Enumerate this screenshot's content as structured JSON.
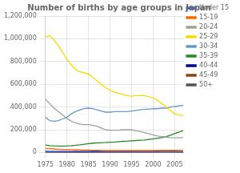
{
  "chart_data": {
    "type": "line",
    "title": "Number of births by age groups in Japan",
    "x": [
      1975,
      1976,
      1977,
      1978,
      1979,
      1980,
      1981,
      1982,
      1983,
      1984,
      1985,
      1986,
      1987,
      1988,
      1989,
      1990,
      1991,
      1992,
      1993,
      1994,
      1995,
      1996,
      1997,
      1998,
      1999,
      2000,
      2001,
      2002,
      2003,
      2004,
      2005,
      2006,
      2007
    ],
    "series": [
      {
        "name": "Under 15",
        "color": "#4169E1",
        "values": [
          5000,
          4500,
          4000,
          3500,
          3200,
          3000,
          2800,
          2600,
          2400,
          2200,
          2100,
          2000,
          1900,
          1800,
          1700,
          1600,
          1500,
          1400,
          1300,
          1200,
          1100,
          1100,
          1000,
          1000,
          900,
          900,
          800,
          800,
          700,
          700,
          600,
          600,
          600
        ]
      },
      {
        "name": "15-19",
        "color": "#FF6600",
        "values": [
          35000,
          33000,
          31000,
          29000,
          27000,
          26000,
          25000,
          24000,
          23000,
          22000,
          21000,
          20000,
          19000,
          18000,
          17000,
          17000,
          17000,
          17000,
          17000,
          17000,
          17000,
          17000,
          17000,
          17000,
          17000,
          17000,
          18000,
          18000,
          18000,
          18000,
          18000,
          19000,
          19000
        ]
      },
      {
        "name": "20-24",
        "color": "#A0A0A0",
        "values": [
          470000,
          430000,
          390000,
          360000,
          330000,
          300000,
          275000,
          260000,
          250000,
          245000,
          245000,
          240000,
          230000,
          215000,
          200000,
          195000,
          195000,
          195000,
          200000,
          200000,
          200000,
          190000,
          185000,
          175000,
          165000,
          155000,
          145000,
          140000,
          135000,
          130000,
          128000,
          130000,
          130000
        ]
      },
      {
        "name": "25-29",
        "color": "#FFD700",
        "values": [
          1010000,
          1030000,
          990000,
          940000,
          880000,
          820000,
          770000,
          730000,
          710000,
          700000,
          690000,
          660000,
          630000,
          600000,
          570000,
          550000,
          530000,
          520000,
          510000,
          500000,
          495000,
          500000,
          500000,
          500000,
          490000,
          480000,
          460000,
          430000,
          400000,
          370000,
          340000,
          330000,
          325000
        ]
      },
      {
        "name": "30-34",
        "color": "#6699CC",
        "values": [
          310000,
          280000,
          275000,
          280000,
          295000,
          310000,
          340000,
          360000,
          375000,
          385000,
          390000,
          385000,
          375000,
          365000,
          355000,
          355000,
          360000,
          360000,
          360000,
          360000,
          365000,
          370000,
          375000,
          380000,
          380000,
          385000,
          385000,
          390000,
          390000,
          400000,
          405000,
          410000,
          415000
        ]
      },
      {
        "name": "35-39",
        "color": "#228B22",
        "values": [
          65000,
          60000,
          58000,
          57000,
          57000,
          58000,
          60000,
          63000,
          67000,
          72000,
          77000,
          82000,
          85000,
          87000,
          88000,
          90000,
          92000,
          95000,
          98000,
          100000,
          103000,
          105000,
          108000,
          110000,
          115000,
          120000,
          125000,
          130000,
          140000,
          152000,
          165000,
          180000,
          192000
        ]
      },
      {
        "name": "40-44",
        "color": "#00008B",
        "values": [
          10000,
          9500,
          9000,
          8800,
          8700,
          8600,
          8700,
          8800,
          9000,
          9200,
          9500,
          9800,
          10000,
          10200,
          10400,
          10600,
          10800,
          11000,
          11200,
          11400,
          11600,
          11800,
          12000,
          12200,
          12500,
          12800,
          13200,
          13800,
          14500,
          15500,
          16500,
          17500,
          18500
        ]
      },
      {
        "name": "45-49",
        "color": "#8B4513",
        "values": [
          1500,
          1400,
          1300,
          1300,
          1200,
          1200,
          1200,
          1200,
          1200,
          1200,
          1300,
          1300,
          1300,
          1400,
          1400,
          1400,
          1400,
          1500,
          1500,
          1500,
          1600,
          1600,
          1700,
          1800,
          1900,
          2000,
          2200,
          2400,
          2600,
          2900,
          3100,
          3300,
          3500
        ]
      },
      {
        "name": "50+",
        "color": "#555555",
        "values": [
          500,
          480,
          460,
          450,
          440,
          430,
          420,
          420,
          420,
          420,
          430,
          440,
          450,
          460,
          470,
          480,
          490,
          500,
          510,
          520,
          530,
          540,
          550,
          570,
          590,
          620,
          660,
          700,
          750,
          800,
          850,
          900,
          950
        ]
      }
    ],
    "xlim": [
      1975,
      2007
    ],
    "xticks": [
      1975,
      1980,
      1985,
      1990,
      1995,
      2000,
      2005
    ],
    "ylim": [
      0,
      1200000
    ],
    "yticks": [
      0,
      {
        "value": 200000,
        "label": "200,000"
      },
      {
        "value": 400000,
        "label": "400,000"
      },
      {
        "value": 600000,
        "label": "600,000"
      },
      {
        "value": 800000,
        "label": "800,000"
      },
      {
        "value": 1000000,
        "label": "1,000,000"
      },
      {
        "value": 1200000,
        "label": "1,200,000"
      }
    ],
    "grid": true,
    "legend": "right"
  }
}
